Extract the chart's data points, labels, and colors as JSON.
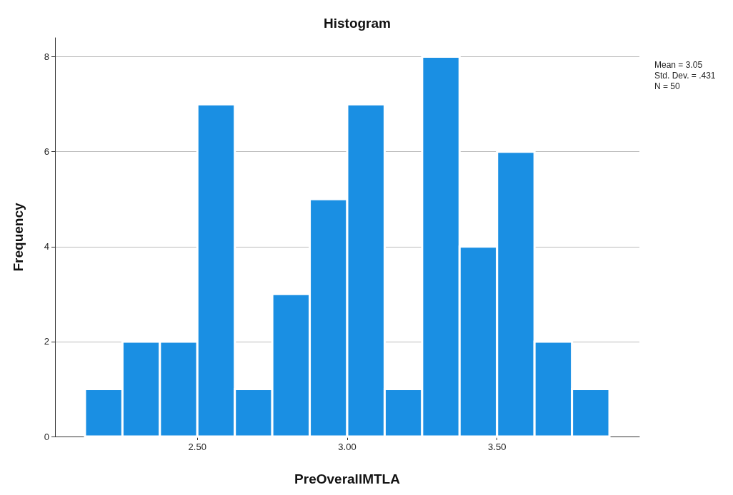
{
  "chart_data": {
    "type": "histogram",
    "title": "Histogram",
    "xlabel": "PreOverallMTLA",
    "ylabel": "Frequency",
    "bins": [
      2.125,
      2.25,
      2.375,
      2.5,
      2.625,
      2.75,
      2.875,
      3.0,
      3.125,
      3.25,
      3.375,
      3.5,
      3.625,
      3.75,
      3.875
    ],
    "values": [
      1,
      2,
      2,
      7,
      1,
      3,
      5,
      7,
      1,
      8,
      4,
      6,
      2,
      1
    ],
    "color": "#1a8fe3",
    "xlim": [
      2.025,
      3.975
    ],
    "xticks": [
      {
        "value": 2.5,
        "label": "2.50"
      },
      {
        "value": 3.0,
        "label": "3.00"
      },
      {
        "value": 3.5,
        "label": "3.50"
      }
    ],
    "ylim": [
      0,
      8.4
    ],
    "yticks": [
      0,
      2,
      4,
      6,
      8
    ],
    "grid": "y",
    "annotations": [
      "Mean = 3.05",
      "Std. Dev. = .431",
      "N = 50"
    ]
  }
}
